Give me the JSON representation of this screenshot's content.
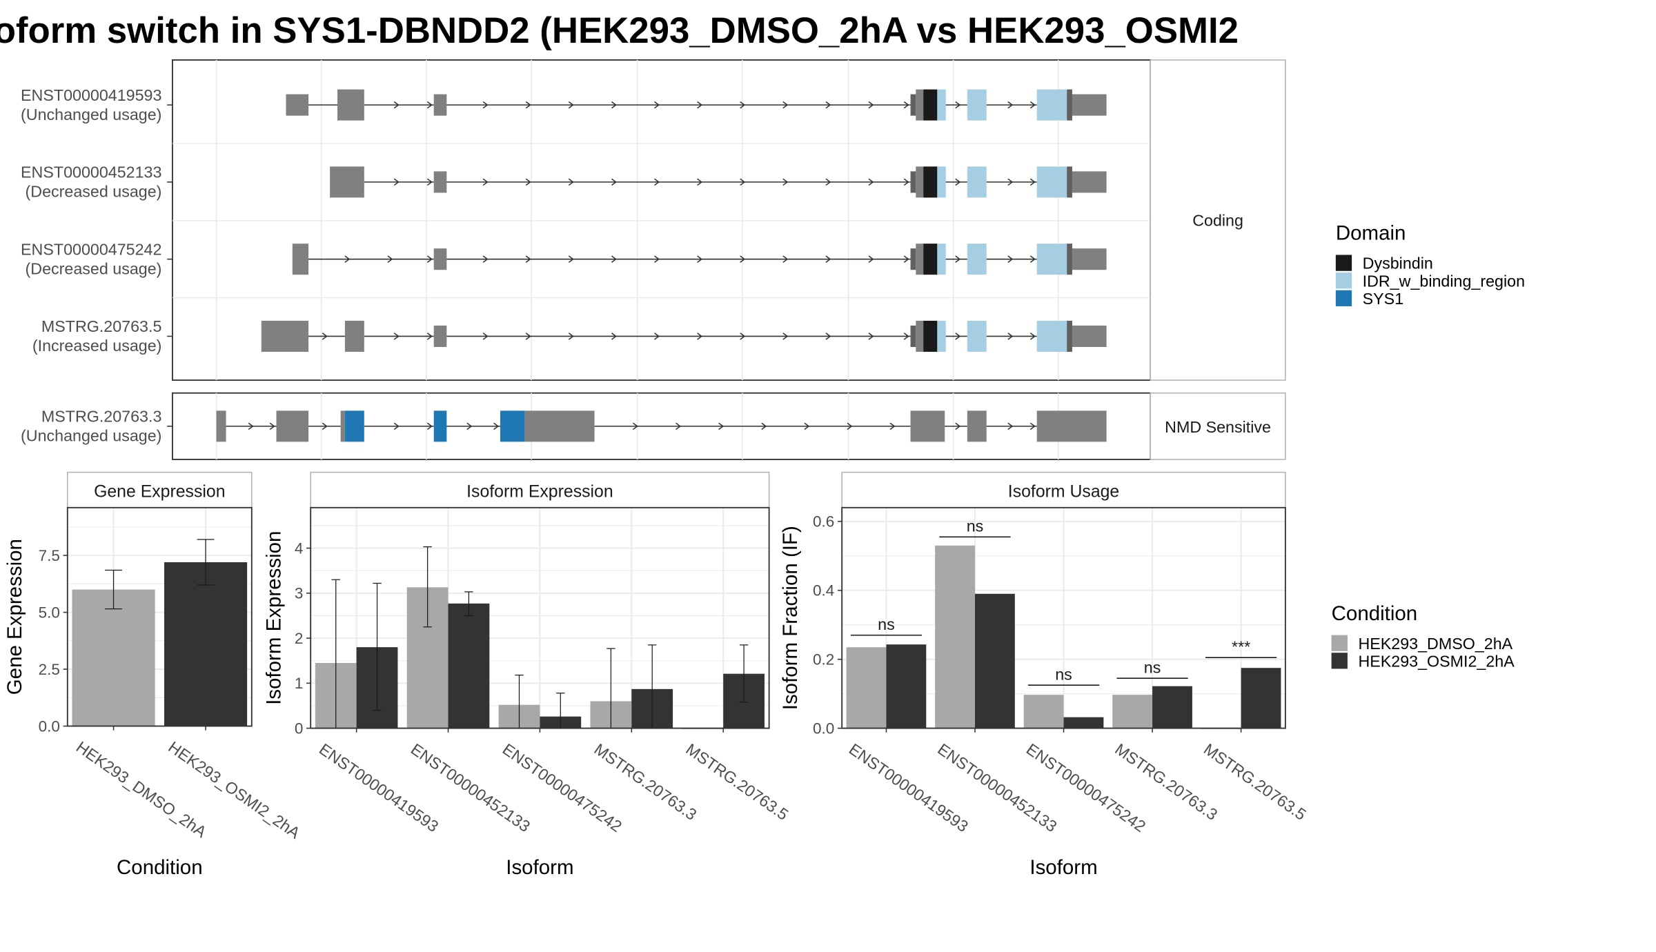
{
  "title": "oform switch in SYS1-DBNDD2 (HEK293_DMSO_2hA vs HEK293_OSMI2",
  "colors": {
    "exon": "#808080",
    "utr_edge": "#606060",
    "Dysbindin": "#1a1a1a",
    "IDR_w_binding_region": "#a6cee3",
    "SYS1": "#1f78b4",
    "HEK293_DMSO_2hA": "#a8a8a8",
    "HEK293_OSMI2_2hA": "#333333",
    "panel_border": "#333333",
    "grid": "#ebebeb",
    "strip_border": "#b3b3b3"
  },
  "structure": {
    "transcripts": [
      {
        "id": "ENST00000419593",
        "line1": "ENST00000419593",
        "line2": "(Unchanged usage)",
        "group": "Coding"
      },
      {
        "id": "ENST00000452133",
        "line1": "ENST00000452133",
        "line2": "(Decreased usage)",
        "group": "Coding"
      },
      {
        "id": "ENST00000475242",
        "line1": "ENST00000475242",
        "line2": "(Decreased usage)",
        "group": "Coding"
      },
      {
        "id": "MSTRG.20763.5",
        "line1": "MSTRG.20763.5",
        "line2": "(Increased usage)",
        "group": "Coding"
      },
      {
        "id": "MSTRG.20763.3",
        "line1": "MSTRG.20763.3",
        "line2": "(Unchanged usage)",
        "group": "NMD Sensitive"
      }
    ],
    "group_labels": {
      "coding": "Coding",
      "nmd": "NMD Sensitive"
    }
  },
  "legends": {
    "domain": {
      "title": "Domain",
      "items": [
        "Dysbindin",
        "IDR_w_binding_region",
        "SYS1"
      ]
    },
    "condition": {
      "title": "Condition",
      "items": [
        "HEK293_DMSO_2hA",
        "HEK293_OSMI2_2hA"
      ]
    }
  },
  "chart_data": [
    {
      "type": "bar",
      "title": "Gene Expression",
      "xlabel": "Condition",
      "ylabel": "Gene Expression",
      "ylim": [
        0,
        9.6
      ],
      "yticks": [
        "0.0",
        "2.5",
        "5.0",
        "7.5"
      ],
      "ytick_values": [
        0,
        2.5,
        5,
        7.5
      ],
      "categories": [
        "HEK293_DMSO_2hA",
        "HEK293_OSMI2_2hA"
      ],
      "values": [
        6.0,
        7.2
      ],
      "error": [
        [
          5.15,
          6.85
        ],
        [
          6.2,
          8.2
        ]
      ]
    },
    {
      "type": "bar",
      "title": "Isoform Expression",
      "xlabel": "Isoform",
      "ylabel": "Isoform Expression",
      "ylim": [
        0,
        4.9
      ],
      "yticks": [
        "0",
        "1",
        "2",
        "3",
        "4"
      ],
      "ytick_values": [
        0,
        1,
        2,
        3,
        4
      ],
      "categories": [
        "ENST00000419593",
        "ENST00000452133",
        "ENST00000475242",
        "MSTRG.20763.3",
        "MSTRG.20763.5"
      ],
      "series": [
        {
          "name": "HEK293_DMSO_2hA",
          "values": [
            1.45,
            3.13,
            0.52,
            0.6,
            0.0
          ],
          "error": [
            [
              0,
              3.3
            ],
            [
              2.25,
              4.03
            ],
            [
              0,
              1.18
            ],
            [
              0,
              1.77
            ],
            [
              0,
              0
            ]
          ]
        },
        {
          "name": "HEK293_OSMI2_2hA",
          "values": [
            1.8,
            2.77,
            0.26,
            0.87,
            1.21
          ],
          "error": [
            [
              0.4,
              3.22
            ],
            [
              2.5,
              3.03
            ],
            [
              0,
              0.78
            ],
            [
              0,
              1.85
            ],
            [
              0.58,
              1.85
            ]
          ]
        }
      ]
    },
    {
      "type": "bar",
      "title": "Isoform Usage",
      "xlabel": "Isoform",
      "ylabel": "Isoform Fraction (IF)",
      "ylim": [
        0,
        0.64
      ],
      "yticks": [
        "0.0",
        "0.2",
        "0.4",
        "0.6"
      ],
      "ytick_values": [
        0,
        0.2,
        0.4,
        0.6
      ],
      "categories": [
        "ENST00000419593",
        "ENST00000452133",
        "ENST00000475242",
        "MSTRG.20763.3",
        "MSTRG.20763.5"
      ],
      "series": [
        {
          "name": "HEK293_DMSO_2hA",
          "values": [
            0.235,
            0.53,
            0.097,
            0.097,
            0.0
          ]
        },
        {
          "name": "HEK293_OSMI2_2hA",
          "values": [
            0.243,
            0.39,
            0.032,
            0.122,
            0.175
          ]
        }
      ],
      "annotations": [
        "ns",
        "ns",
        "ns",
        "ns",
        "***"
      ],
      "annotation_y": [
        0.27,
        0.555,
        0.125,
        0.145,
        0.205
      ]
    }
  ]
}
